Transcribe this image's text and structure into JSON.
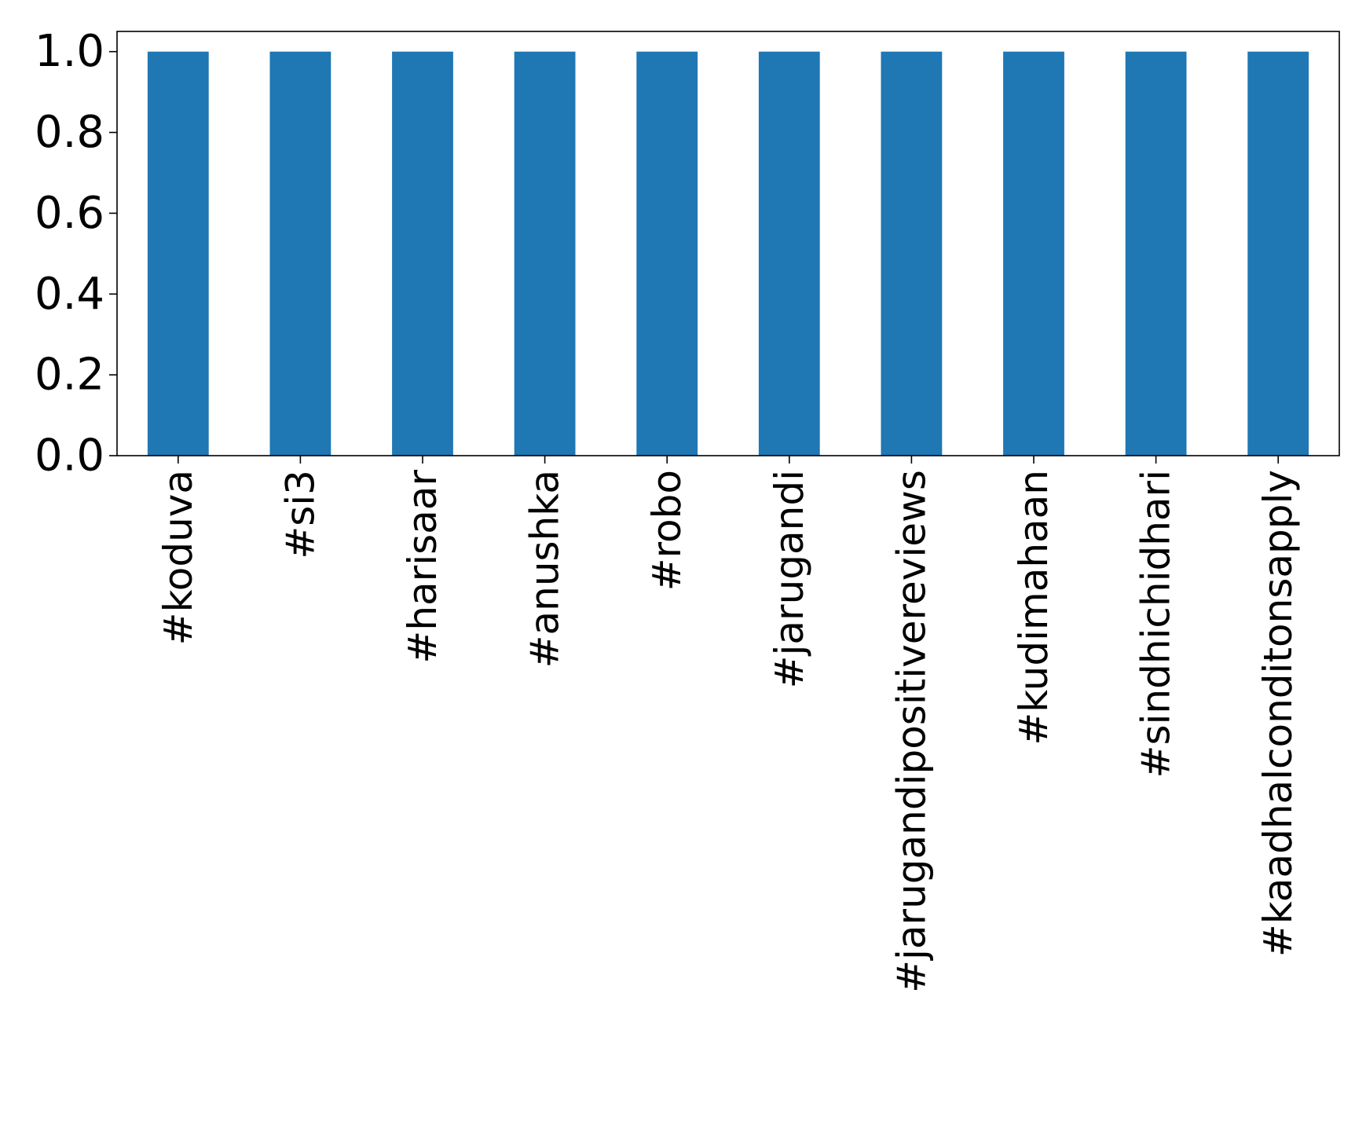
{
  "chart_data": {
    "type": "bar",
    "title": "",
    "xlabel": "",
    "ylabel": "",
    "categories": [
      "#koduva",
      "#si3",
      "#harisaar",
      "#anushka",
      "#robo",
      "#jarugandi",
      "#jarugandipositivereviews",
      "#kudimahaan",
      "#sindhichidhari",
      "#kaadhalconditonsapply"
    ],
    "values": [
      1.0,
      1.0,
      1.0,
      1.0,
      1.0,
      1.0,
      1.0,
      1.0,
      1.0,
      1.0
    ],
    "ylim": [
      0,
      1.05
    ],
    "yticks": [
      "0.0",
      "0.2",
      "0.4",
      "0.6",
      "0.8",
      "1.0"
    ],
    "grid": false,
    "legend": "none",
    "colors": {
      "bar": "#1f77b4",
      "axis": "#000000",
      "background": "#ffffff"
    }
  }
}
